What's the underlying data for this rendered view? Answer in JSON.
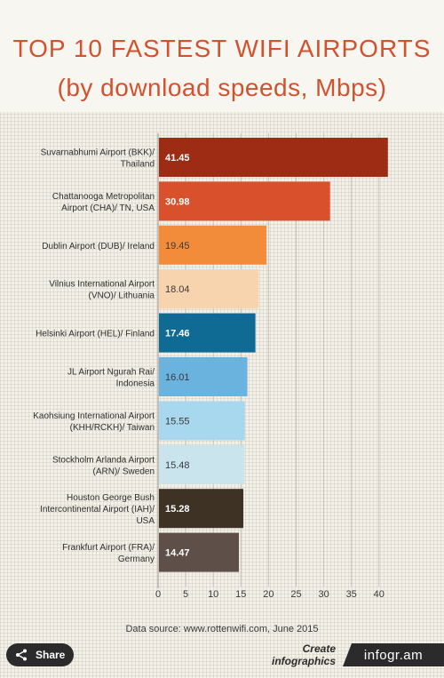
{
  "header": {
    "title": "TOP 10 FASTEST WIFI AIRPORTS",
    "subtitle": "(by download speeds, Mbps)"
  },
  "chart_data": {
    "type": "bar",
    "orientation": "horizontal",
    "categories": [
      [
        "Suvarnabhumi Airport (BKK)/",
        "Thailand"
      ],
      [
        "Chattanooga Metropolitan",
        "Airport (CHA)/ TN, USA"
      ],
      [
        "Dublin Airport (DUB)/ Ireland"
      ],
      [
        "Vilnius International Airport",
        "(VNO)/ Lithuania"
      ],
      [
        "Helsinki Airport (HEL)/ Finland"
      ],
      [
        "JL Airport Ngurah Rai/",
        "Indonesia"
      ],
      [
        "Kaohsiung International Airport",
        "(KHH/RCKH)/ Taiwan"
      ],
      [
        "Stockholm Arlanda Airport",
        "(ARN)/ Sweden"
      ],
      [
        "Houston George Bush",
        "Intercontinental Airport (IAH)/",
        "USA"
      ],
      [
        "Frankfurt Airport (FRA)/",
        "Germany"
      ]
    ],
    "values": [
      41.45,
      30.98,
      19.45,
      18.04,
      17.46,
      16.01,
      15.55,
      15.48,
      15.28,
      14.47
    ],
    "value_labels": [
      "41.45",
      "30.98",
      "19.45",
      "18.04",
      "17.46",
      "16.01",
      "15.55",
      "15.48",
      "15.28",
      "14.47"
    ],
    "colors": [
      "#9e2c14",
      "#d9512c",
      "#f28c3a",
      "#f7d3ae",
      "#0f6b94",
      "#6ab3df",
      "#a8d8ee",
      "#c9e4ec",
      "#3d3224",
      "#5e5049"
    ],
    "label_colors": [
      "#ffffff",
      "#ffffff",
      "#3a3a3a",
      "#3a3a3a",
      "#ffffff",
      "#3a3a3a",
      "#3a3a3a",
      "#3a3a3a",
      "#ffffff",
      "#ffffff"
    ],
    "xlim": [
      0,
      44
    ],
    "xticks": [
      "0",
      "5",
      "10",
      "15",
      "20",
      "25",
      "30",
      "35",
      "40"
    ],
    "grid": true
  },
  "footer": {
    "source": "Data source: www.rottenwifi.com, June 2015",
    "share_label": "Share",
    "create_text": "Create infographics",
    "brand": "infogr.am"
  }
}
